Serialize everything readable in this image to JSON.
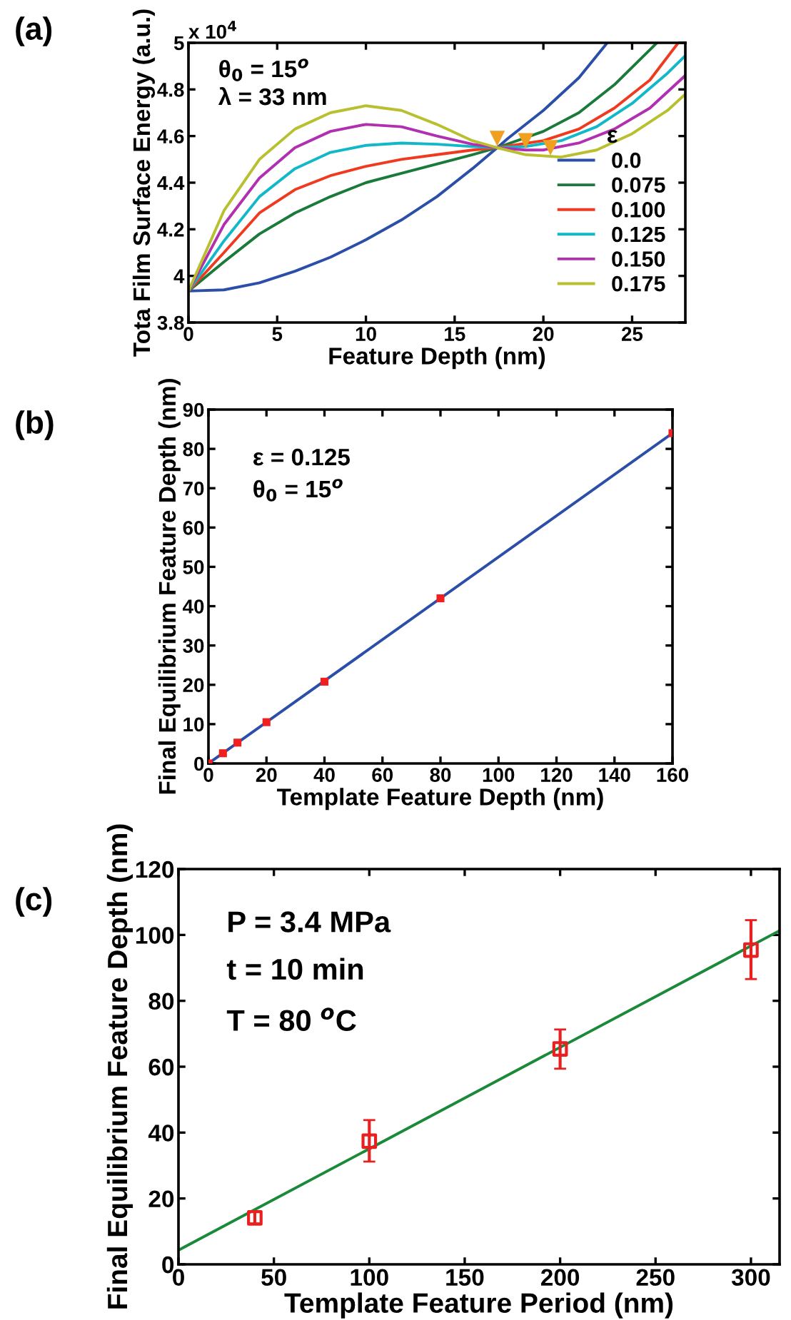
{
  "chart_data": [
    {
      "type": "line",
      "xlabel": "Feature Depth (nm)",
      "ylabel": "Tota Film Surface Energy (a.u.)",
      "legend_title": "ε",
      "legend": "right",
      "xlim": [
        0,
        28
      ],
      "xticks": [
        0,
        5,
        10,
        15,
        20,
        25
      ],
      "ylim": [
        3.8,
        5
      ],
      "yticks": [
        3.8,
        4,
        4.2,
        4.4,
        4.6,
        4.8,
        5
      ],
      "grid": false,
      "annotations": [
        "(a)",
        "x 10$^{4}$",
        "θ$_{0}$ = 15$^{o}$",
        "λ = 33 nm"
      ],
      "series": [
        {
          "name": "0.0",
          "color": "#2b4ea8",
          "x": [
            0,
            2,
            4,
            6,
            8,
            10,
            12,
            14,
            16,
            17.4,
            18,
            20,
            22,
            23.6
          ],
          "values": [
            3.935,
            3.94,
            3.97,
            4.02,
            4.08,
            4.155,
            4.24,
            4.34,
            4.46,
            4.55,
            4.59,
            4.71,
            4.85,
            5.0
          ]
        },
        {
          "name": "0.075",
          "color": "#1a7a3a",
          "x": [
            0,
            2,
            4,
            6,
            8,
            10,
            12,
            14,
            16,
            17.4,
            20,
            22,
            24,
            26.4
          ],
          "values": [
            3.935,
            4.06,
            4.18,
            4.27,
            4.34,
            4.4,
            4.44,
            4.48,
            4.52,
            4.55,
            4.62,
            4.7,
            4.82,
            5.0
          ]
        },
        {
          "name": "0.100",
          "color": "#f03a20",
          "x": [
            0,
            2,
            4,
            6,
            8,
            10,
            12,
            14,
            16,
            17.4,
            20,
            22,
            24,
            26,
            27.6
          ],
          "values": [
            3.935,
            4.1,
            4.27,
            4.37,
            4.43,
            4.47,
            4.5,
            4.52,
            4.54,
            4.55,
            4.58,
            4.63,
            4.72,
            4.84,
            5.0
          ]
        },
        {
          "name": "0.125",
          "color": "#10b8c8",
          "x": [
            0,
            2,
            4,
            6,
            8,
            10,
            12,
            14,
            16,
            17.4,
            19,
            21,
            23,
            25,
            27,
            28
          ],
          "values": [
            3.935,
            4.15,
            4.34,
            4.46,
            4.53,
            4.56,
            4.57,
            4.565,
            4.555,
            4.55,
            4.555,
            4.58,
            4.64,
            4.74,
            4.87,
            4.945
          ]
        },
        {
          "name": "0.150",
          "color": "#b030b0",
          "x": [
            0,
            2,
            4,
            6,
            8,
            10,
            12,
            14,
            16,
            17.4,
            19,
            20,
            22,
            24,
            26,
            28
          ],
          "values": [
            3.935,
            4.22,
            4.42,
            4.55,
            4.62,
            4.65,
            4.64,
            4.6,
            4.565,
            4.55,
            4.54,
            4.54,
            4.57,
            4.63,
            4.72,
            4.86
          ]
        },
        {
          "name": "0.175",
          "color": "#b8c030",
          "x": [
            0,
            2,
            4,
            6,
            8,
            10,
            12,
            14,
            16,
            17.4,
            19,
            21,
            23,
            25,
            27,
            28
          ],
          "values": [
            3.935,
            4.28,
            4.5,
            4.63,
            4.7,
            4.73,
            4.71,
            4.65,
            4.58,
            4.55,
            4.52,
            4.51,
            4.54,
            4.61,
            4.71,
            4.78
          ]
        },
        {
          "type": "scatter",
          "marker": "triangle",
          "color": "#f0a020",
          "x": [
            17.4,
            19.0,
            20.4
          ],
          "values": [
            4.59,
            4.58,
            4.55
          ]
        }
      ]
    },
    {
      "type": "line",
      "xlabel": "Template Feature Depth (nm)",
      "ylabel": "Final Equilibrium Feature Depth (nm)",
      "xlim": [
        0,
        160
      ],
      "xticks": [
        0,
        20,
        40,
        60,
        80,
        100,
        120,
        140,
        160
      ],
      "ylim": [
        0,
        90
      ],
      "yticks": [
        0,
        10,
        20,
        30,
        40,
        50,
        60,
        70,
        80,
        90
      ],
      "grid": false,
      "annotations": [
        "(b)",
        "ε = 0.125",
        "θ$_{0}$ = 15$^{o}$"
      ],
      "series": [
        {
          "color": "#2b4ea8",
          "x": [
            0,
            160
          ],
          "values": [
            0,
            84
          ]
        },
        {
          "type": "scatter",
          "marker": "square",
          "color": "#f02020",
          "x": [
            0,
            5,
            10,
            20,
            40,
            80,
            160
          ],
          "values": [
            0,
            2.6,
            5.3,
            10.5,
            20.8,
            42,
            84
          ]
        }
      ]
    },
    {
      "type": "scatter",
      "xlabel": "Template Feature Period (nm)",
      "ylabel": "Final Equilibrium Feature Depth (nm)",
      "xlim": [
        0,
        315
      ],
      "xticks": [
        0,
        50,
        100,
        150,
        200,
        250,
        300
      ],
      "ylim": [
        0,
        120
      ],
      "yticks": [
        0,
        20,
        40,
        60,
        80,
        100,
        120
      ],
      "grid": false,
      "annotations": [
        "(c)",
        "P = 3.4 MPa",
        "t = 10 min",
        "T = 80 $^{o}$C"
      ],
      "series": [
        {
          "type": "line",
          "color": "#1a8a3a",
          "x": [
            0,
            315
          ],
          "values": [
            4.3,
            101.3
          ]
        },
        {
          "type": "scatter",
          "marker": "square",
          "color": "#e82020",
          "x": [
            40,
            100,
            200,
            300
          ],
          "values": [
            14.1,
            37.4,
            65.4,
            95.4
          ],
          "errors": [
            [
              12.4,
              15.9
            ],
            [
              31.2,
              43.8
            ],
            [
              59.4,
              71.3
            ],
            [
              86.6,
              104.5
            ]
          ]
        }
      ]
    }
  ]
}
